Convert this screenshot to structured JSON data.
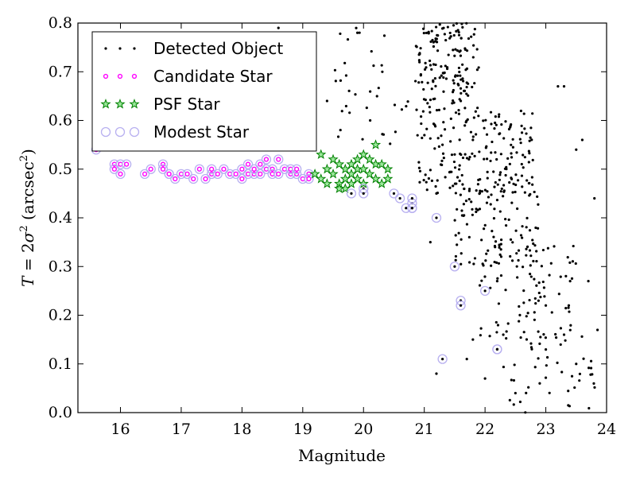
{
  "chart_data": {
    "type": "scatter",
    "xlabel": "Magnitude",
    "ylabel": {
      "prefix": "T",
      "eq": " = 2",
      "sigma": "σ",
      "sq": "2",
      "unit_open": " (arcsec",
      "unit_sq": "2",
      "unit_close": ")"
    },
    "xlim": [
      15.3,
      24.0
    ],
    "ylim": [
      0.0,
      0.8
    ],
    "xticks": [
      16,
      17,
      18,
      19,
      20,
      21,
      22,
      23,
      24
    ],
    "yticks": [
      0.0,
      0.1,
      0.2,
      0.3,
      0.4,
      0.5,
      0.6,
      0.7,
      0.8
    ],
    "legend_position": "top-left",
    "grid": false,
    "series": [
      {
        "name": "Detected Object",
        "marker": "dot",
        "color": "#000000",
        "clusters": [
          {
            "x": [
              20.9,
              21.9
            ],
            "y": [
              0.62,
              0.8
            ],
            "n": 140
          },
          {
            "x": [
              20.9,
              22.8
            ],
            "y": [
              0.45,
              0.62
            ],
            "n": 170
          },
          {
            "x": [
              21.5,
              22.9
            ],
            "y": [
              0.3,
              0.5
            ],
            "n": 110
          },
          {
            "x": [
              21.9,
              23.5
            ],
            "y": [
              0.15,
              0.35
            ],
            "n": 80
          },
          {
            "x": [
              22.3,
              23.9
            ],
            "y": [
              0.0,
              0.18
            ],
            "n": 50
          },
          {
            "x": [
              19.5,
              21.0
            ],
            "y": [
              0.55,
              0.8
            ],
            "n": 45
          }
        ],
        "x": [
          18.6,
          18.7,
          19.2,
          19.4,
          19.9,
          21.3,
          21.8,
          22.2,
          22.5,
          22.9,
          23.2,
          23.3,
          23.5,
          23.6,
          23.8,
          23.4,
          23.0,
          21.2,
          21.1,
          21.7,
          22.0,
          23.3,
          23.5,
          23.7,
          21.2,
          22.3
        ],
        "y": [
          0.79,
          0.66,
          0.62,
          0.64,
          0.78,
          0.55,
          0.15,
          0.27,
          0.04,
          0.06,
          0.67,
          0.67,
          0.54,
          0.56,
          0.44,
          0.27,
          0.22,
          0.45,
          0.35,
          0.11,
          0.07,
          0.16,
          0.1,
          0.27,
          0.08,
          0.16
        ]
      },
      {
        "name": "Candidate Star",
        "marker": "circle",
        "color": "#ff00ff",
        "x": [
          15.6,
          15.9,
          15.9,
          16.0,
          16.0,
          16.1,
          16.4,
          16.5,
          16.7,
          16.7,
          16.8,
          16.8,
          16.9,
          17.0,
          17.1,
          17.2,
          17.3,
          17.4,
          17.5,
          17.5,
          17.6,
          17.7,
          17.8,
          17.9,
          18.0,
          18.0,
          18.1,
          18.1,
          18.2,
          18.2,
          18.3,
          18.3,
          18.4,
          18.4,
          18.5,
          18.5,
          18.6,
          18.6,
          18.7,
          18.8,
          18.8,
          18.9,
          18.9,
          19.0,
          19.1,
          19.1
        ],
        "y": [
          0.54,
          0.51,
          0.5,
          0.49,
          0.51,
          0.51,
          0.49,
          0.5,
          0.51,
          0.5,
          0.49,
          0.49,
          0.48,
          0.49,
          0.49,
          0.48,
          0.5,
          0.48,
          0.49,
          0.5,
          0.49,
          0.5,
          0.49,
          0.49,
          0.48,
          0.5,
          0.49,
          0.51,
          0.49,
          0.5,
          0.49,
          0.51,
          0.5,
          0.52,
          0.5,
          0.49,
          0.49,
          0.52,
          0.5,
          0.49,
          0.5,
          0.49,
          0.5,
          0.48,
          0.49,
          0.48
        ]
      },
      {
        "name": "PSF Star",
        "marker": "star",
        "color": "#008000",
        "x": [
          19.2,
          19.3,
          19.3,
          19.4,
          19.4,
          19.5,
          19.5,
          19.6,
          19.6,
          19.7,
          19.7,
          19.7,
          19.8,
          19.8,
          19.9,
          19.9,
          19.9,
          20.0,
          20.0,
          20.1,
          20.1,
          20.2,
          20.2,
          20.2,
          20.3,
          20.3,
          20.4,
          20.4,
          19.6,
          20.0,
          19.8
        ],
        "y": [
          0.49,
          0.53,
          0.48,
          0.5,
          0.47,
          0.49,
          0.52,
          0.51,
          0.47,
          0.48,
          0.5,
          0.46,
          0.49,
          0.47,
          0.52,
          0.48,
          0.5,
          0.47,
          0.5,
          0.49,
          0.52,
          0.55,
          0.51,
          0.48,
          0.51,
          0.47,
          0.48,
          0.5,
          0.46,
          0.53,
          0.51
        ]
      },
      {
        "name": "Modest Star",
        "marker": "open-circle",
        "color": "#7b68ee",
        "x": [
          19.8,
          20.0,
          20.0,
          20.5,
          20.6,
          20.7,
          20.8,
          20.8,
          20.8,
          20.8,
          21.2,
          21.3,
          21.5,
          21.6,
          21.6,
          22.0,
          22.2,
          22.2
        ],
        "y": [
          0.45,
          0.46,
          0.45,
          0.45,
          0.44,
          0.42,
          0.42,
          0.43,
          0.44,
          0.42,
          0.4,
          0.11,
          0.3,
          0.23,
          0.22,
          0.25,
          0.13,
          0.13
        ]
      }
    ]
  }
}
